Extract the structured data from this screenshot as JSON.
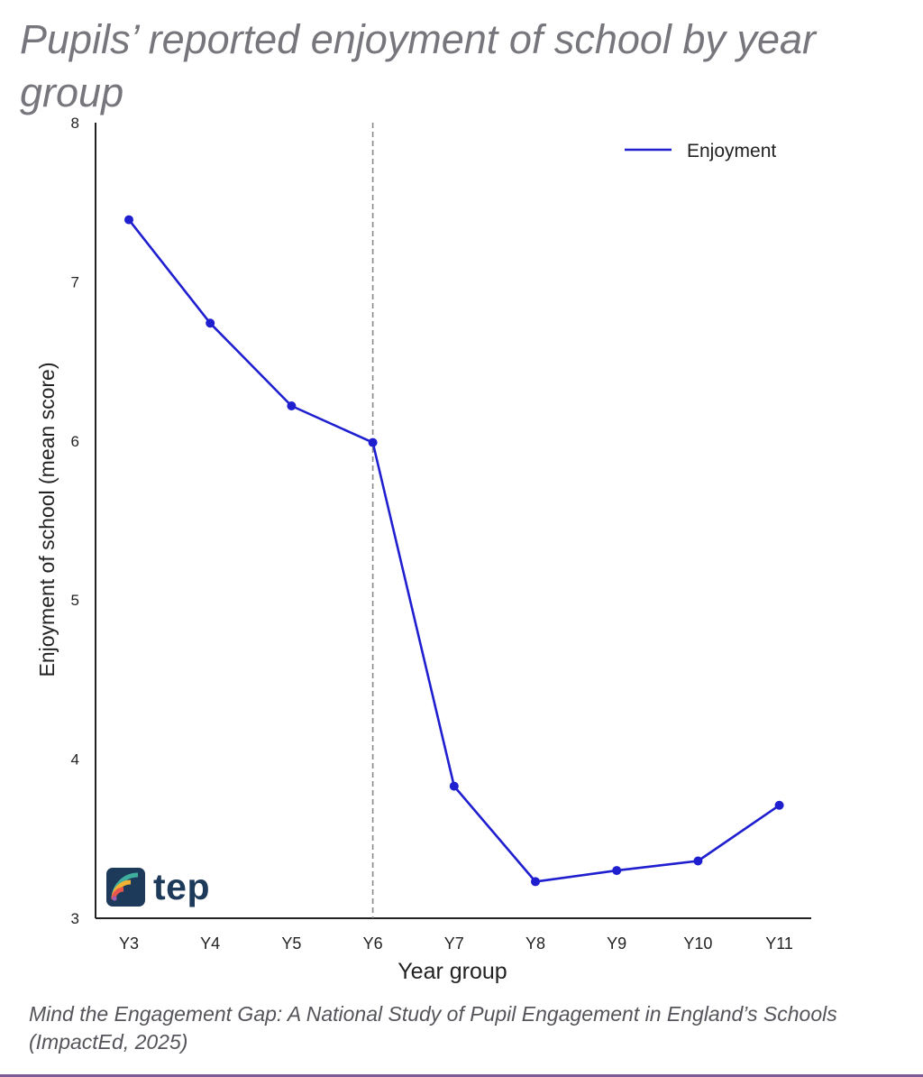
{
  "title": "Pupils’ reported enjoyment of school by year group",
  "caption": "Mind the Engagement Gap: A National Study of Pupil Engagement in England’s Schools (ImpactEd, 2025)",
  "logo": {
    "text": "tep"
  },
  "colors": {
    "line": "#1f1fd0",
    "title": "#77767c",
    "caption": "#55545a",
    "axis": "#222222",
    "reference_line": "#888888",
    "logo_text": "#1d3a5a",
    "bottom_rule": "#7b5a97"
  },
  "chart_data": {
    "type": "line",
    "categories": [
      "Y3",
      "Y4",
      "Y5",
      "Y6",
      "Y7",
      "Y8",
      "Y9",
      "Y10",
      "Y11"
    ],
    "series": [
      {
        "name": "Enjoyment",
        "values": [
          7.39,
          6.74,
          6.22,
          5.99,
          3.83,
          3.23,
          3.3,
          3.36,
          3.71
        ]
      }
    ],
    "xlabel": "Year group",
    "ylabel": "Enjoyment of school (mean score)",
    "ylim": [
      3,
      8
    ],
    "yticks": [
      3,
      4,
      5,
      6,
      7,
      8
    ],
    "reference_line": {
      "x": "Y6",
      "style": "dashed"
    },
    "legend": {
      "position": "top-right"
    },
    "grid": false
  }
}
